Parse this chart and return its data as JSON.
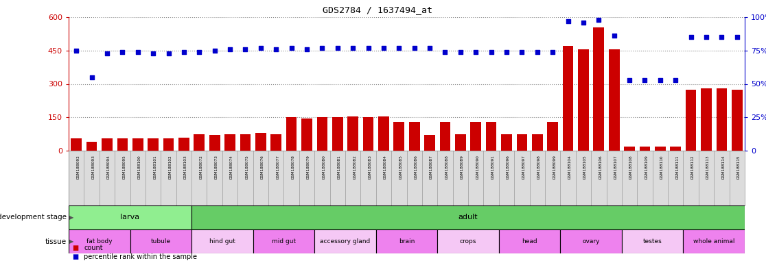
{
  "title": "GDS2784 / 1637494_at",
  "samples": [
    "GSM188092",
    "GSM188093",
    "GSM188094",
    "GSM188095",
    "GSM188100",
    "GSM188101",
    "GSM188102",
    "GSM188103",
    "GSM188072",
    "GSM188073",
    "GSM188074",
    "GSM188075",
    "GSM188076",
    "GSM188077",
    "GSM188078",
    "GSM188079",
    "GSM188080",
    "GSM188081",
    "GSM188082",
    "GSM188083",
    "GSM188084",
    "GSM188085",
    "GSM188086",
    "GSM188087",
    "GSM188088",
    "GSM188089",
    "GSM188090",
    "GSM188091",
    "GSM188096",
    "GSM188097",
    "GSM188098",
    "GSM188099",
    "GSM188104",
    "GSM188105",
    "GSM188106",
    "GSM188107",
    "GSM188108",
    "GSM188109",
    "GSM188110",
    "GSM188111",
    "GSM188112",
    "GSM188113",
    "GSM188114",
    "GSM188115"
  ],
  "count_values": [
    55,
    40,
    55,
    55,
    55,
    55,
    55,
    60,
    75,
    70,
    75,
    75,
    80,
    75,
    150,
    145,
    150,
    150,
    155,
    150,
    155,
    130,
    130,
    70,
    130,
    75,
    130,
    130,
    75,
    75,
    75,
    130,
    470,
    455,
    555,
    455,
    18,
    18,
    18,
    18,
    275,
    280,
    280,
    275
  ],
  "percentile_values": [
    75,
    55,
    73,
    74,
    74,
    73,
    73,
    74,
    74,
    75,
    76,
    76,
    77,
    76,
    77,
    76,
    77,
    77,
    77,
    77,
    77,
    77,
    77,
    77,
    74,
    74,
    74,
    74,
    74,
    74,
    74,
    74,
    97,
    96,
    98,
    86,
    53,
    53,
    53,
    53,
    85,
    85,
    85,
    85
  ],
  "ylim_left": [
    0,
    600
  ],
  "ylim_right": [
    0,
    100
  ],
  "yticks_left": [
    0,
    150,
    300,
    450,
    600
  ],
  "yticks_right": [
    0,
    25,
    50,
    75,
    100
  ],
  "development_stage": [
    {
      "label": "larva",
      "start": 0,
      "end": 8,
      "color": "#90EE90"
    },
    {
      "label": "adult",
      "start": 8,
      "end": 44,
      "color": "#66CC66"
    }
  ],
  "tissues": [
    {
      "label": "fat body",
      "start": 0,
      "end": 4,
      "color": "#EE82EE"
    },
    {
      "label": "tubule",
      "start": 4,
      "end": 8,
      "color": "#EE82EE"
    },
    {
      "label": "hind gut",
      "start": 8,
      "end": 12,
      "color": "#F5C8F5"
    },
    {
      "label": "mid gut",
      "start": 12,
      "end": 16,
      "color": "#EE82EE"
    },
    {
      "label": "accessory gland",
      "start": 16,
      "end": 20,
      "color": "#F5C8F5"
    },
    {
      "label": "brain",
      "start": 20,
      "end": 24,
      "color": "#EE82EE"
    },
    {
      "label": "crops",
      "start": 24,
      "end": 28,
      "color": "#F5C8F5"
    },
    {
      "label": "head",
      "start": 28,
      "end": 32,
      "color": "#EE82EE"
    },
    {
      "label": "ovary",
      "start": 32,
      "end": 36,
      "color": "#EE82EE"
    },
    {
      "label": "testes",
      "start": 36,
      "end": 40,
      "color": "#F5C8F5"
    },
    {
      "label": "whole animal",
      "start": 40,
      "end": 44,
      "color": "#EE82EE"
    }
  ],
  "bar_color": "#CC0000",
  "dot_color": "#0000CC",
  "background_color": "#ffffff",
  "axis_color_left": "#CC0000",
  "axis_color_right": "#0000CC",
  "grid_color": "#888888",
  "sample_bg_color": "#DCDCDC"
}
